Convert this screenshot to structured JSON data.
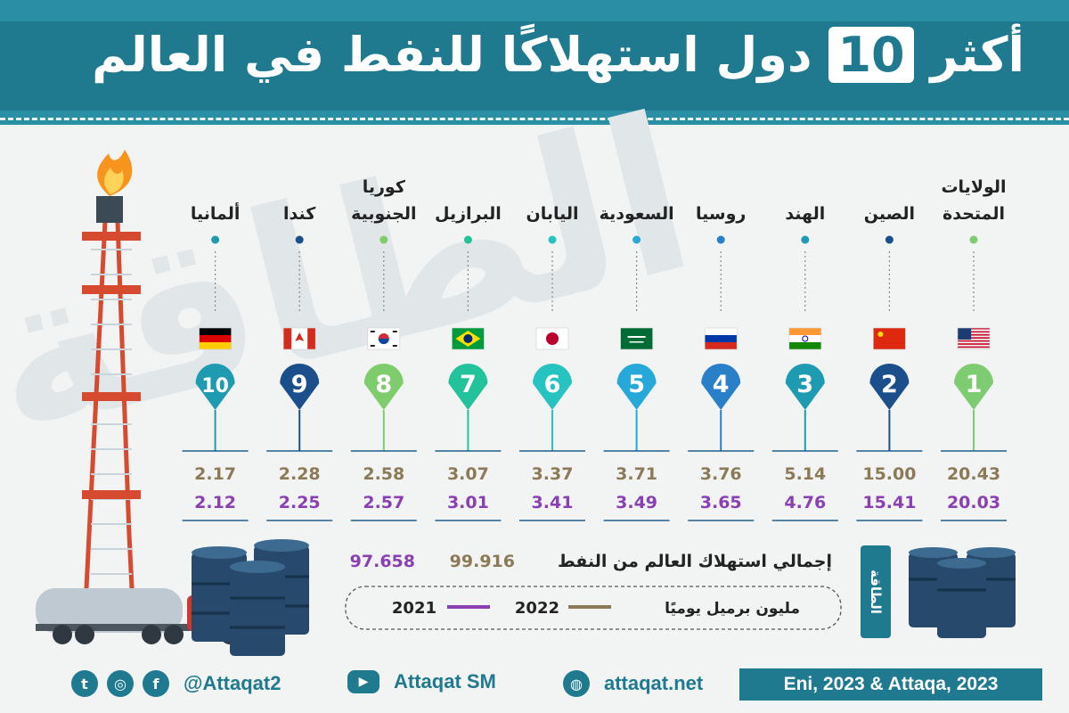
{
  "title": {
    "before": "أكثر",
    "number": "10",
    "after": "دول استهلاكًا للنفط في العالم"
  },
  "watermark": "الطاقة",
  "chart_data": {
    "type": "table",
    "title": "أكثر 10 دول استهلاكًا للنفط في العالم",
    "unit": "مليون برميل يوميًا",
    "series": [
      {
        "name": "2022",
        "color": "#8c7a57",
        "values": [
          20.43,
          15.0,
          5.14,
          3.76,
          3.71,
          3.37,
          3.07,
          2.58,
          2.28,
          2.17
        ]
      },
      {
        "name": "2021",
        "color": "#8a3fb3",
        "values": [
          20.03,
          15.41,
          4.76,
          3.65,
          3.49,
          3.41,
          3.01,
          2.57,
          2.25,
          2.12
        ]
      }
    ],
    "countries": [
      {
        "rank": "1",
        "line1": "الولايات",
        "line2": "المتحدة",
        "v2022": "20.43",
        "v2021": "20.03",
        "color": "#7dcc72",
        "flag": "us-flag"
      },
      {
        "rank": "2",
        "line1": "الصين",
        "line2": "",
        "v2022": "15.00",
        "v2021": "15.41",
        "color": "#1b4f8c",
        "flag": "china-flag"
      },
      {
        "rank": "3",
        "line1": "الهند",
        "line2": "",
        "v2022": "5.14",
        "v2021": "4.76",
        "color": "#1e9bb0",
        "flag": "india-flag"
      },
      {
        "rank": "4",
        "line1": "روسيا",
        "line2": "",
        "v2022": "3.76",
        "v2021": "3.65",
        "color": "#2a7fc9",
        "flag": "russia-flag"
      },
      {
        "rank": "5",
        "line1": "السعودية",
        "line2": "",
        "v2022": "3.71",
        "v2021": "3.49",
        "color": "#26a8d8",
        "flag": "saudi-flag"
      },
      {
        "rank": "6",
        "line1": "اليابان",
        "line2": "",
        "v2022": "3.37",
        "v2021": "3.41",
        "color": "#27c3c0",
        "flag": "japan-flag"
      },
      {
        "rank": "7",
        "line1": "البرازيل",
        "line2": "",
        "v2022": "3.07",
        "v2021": "3.01",
        "color": "#22c29b",
        "flag": "brazil-flag"
      },
      {
        "rank": "8",
        "line1": "كوريا",
        "line2": "الجنوبية",
        "v2022": "2.58",
        "v2021": "2.57",
        "color": "#7fcc6c",
        "flag": "korea-flag"
      },
      {
        "rank": "9",
        "line1": "كندا",
        "line2": "",
        "v2022": "2.28",
        "v2021": "2.25",
        "color": "#1b4f8c",
        "flag": "canada-flag"
      },
      {
        "rank": "10",
        "line1": "ألمانيا",
        "line2": "",
        "v2022": "2.17",
        "v2021": "2.12",
        "color": "#1e9bb0",
        "flag": "germany-flag"
      }
    ],
    "total": {
      "label": "إجمالي استهلاك العالم من النفط",
      "v2022": "99.916",
      "v2021": "97.658"
    },
    "legend": {
      "unit": "مليون برميل يوميًا",
      "year2022": "2022",
      "year2021": "2021"
    }
  },
  "footer": {
    "handle": "@Attaqat2",
    "youtube": "Attaqat SM",
    "website": "attaqat.net",
    "source": "Eni, 2023 & Attaqa, 2023",
    "logo": "الطاقة"
  },
  "colors": {
    "brand": "#1f7a8f",
    "year2022": "#8c7a57",
    "year2021": "#8a3fb3",
    "text": "#222222"
  }
}
